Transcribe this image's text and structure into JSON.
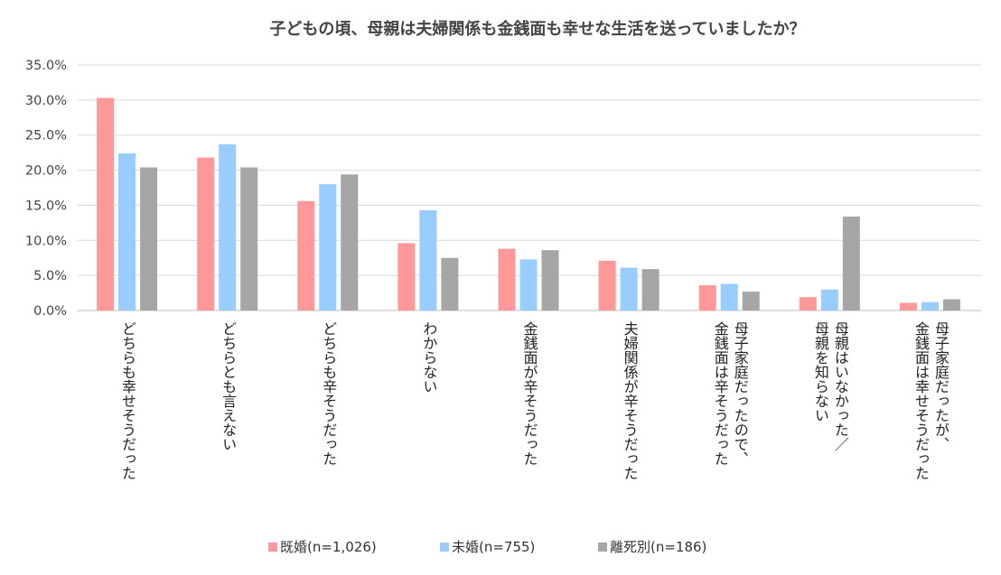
{
  "chart_data": {
    "type": "bar",
    "title": "子どもの頃、母親は夫婦関係も金銭面も幸せな生活を送っていましたか？",
    "xlabel": "",
    "ylabel": "",
    "ylim": [
      0,
      35
    ],
    "yticks": [
      0,
      5,
      10,
      15,
      20,
      25,
      30,
      35
    ],
    "ytick_labels": [
      "0.0%",
      "5.0%",
      "10.0%",
      "15.0%",
      "20.0%",
      "25.0%",
      "30.0%",
      "35.0%"
    ],
    "grid": true,
    "legend_position": "bottom",
    "categories": [
      [
        "どちらも幸せそうだった"
      ],
      [
        "どちらとも言えない"
      ],
      [
        "どちらも辛そうだった"
      ],
      [
        "わからない"
      ],
      [
        "金銭面が辛そうだった"
      ],
      [
        "夫婦関係が辛そうだった"
      ],
      [
        "母子家庭だったので、",
        "金銭面は辛そうだった"
      ],
      [
        "母親はいなかった／",
        "母親を知らない"
      ],
      [
        "母子家庭だったが、",
        "金銭面は幸せそうだった"
      ]
    ],
    "series": [
      {
        "name": "既婚(n=1,026)",
        "color": "#ff9999",
        "values": [
          30.3,
          21.8,
          15.6,
          9.6,
          8.8,
          7.1,
          3.6,
          1.9,
          1.1
        ]
      },
      {
        "name": "未婚(n=755)",
        "color": "#99ccff",
        "values": [
          22.4,
          23.7,
          18.0,
          14.3,
          7.3,
          6.1,
          3.8,
          3.0,
          1.2
        ]
      },
      {
        "name": "離死別(n=186)",
        "color": "#a6a6a6",
        "values": [
          20.4,
          20.4,
          19.4,
          7.5,
          8.6,
          5.9,
          2.7,
          13.4,
          1.6
        ]
      }
    ]
  }
}
